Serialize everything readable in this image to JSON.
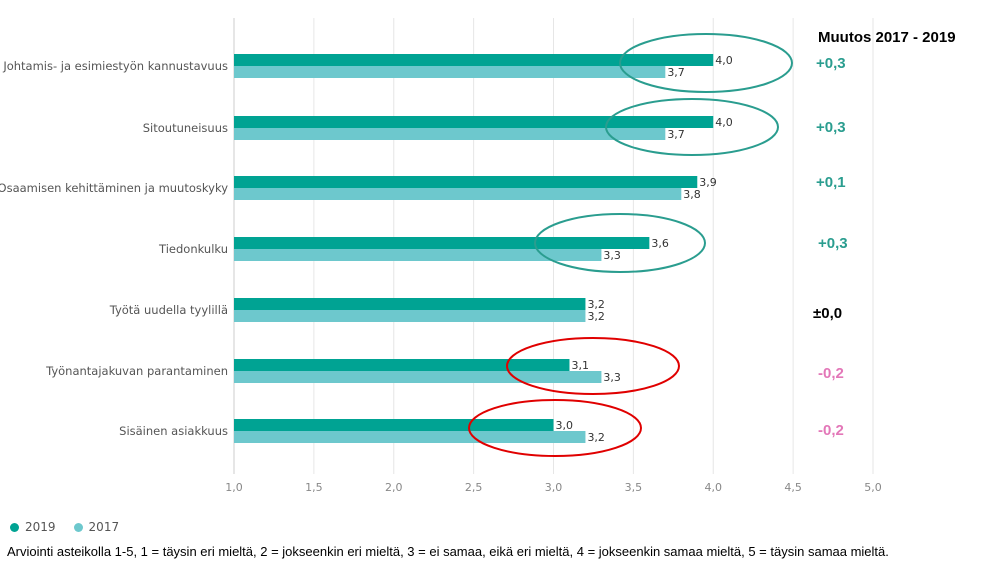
{
  "chart_data": {
    "type": "bar",
    "orientation": "horizontal",
    "categories": [
      "Johtamis- ja esimiestyön kannustavuus",
      "Sitoutuneisuus",
      "Osaamisen kehittäminen ja muutoskyky",
      "Tiedonkulku",
      "Työtä uudella tyylillä",
      "Työnantajakuvan parantaminen",
      "Sisäinen asiakkuus"
    ],
    "series": [
      {
        "name": "2019",
        "color": "#00a393",
        "values": [
          4.0,
          4.0,
          3.9,
          3.6,
          3.2,
          3.1,
          3.0
        ],
        "labels": [
          "4,0",
          "4,0",
          "3,9",
          "3,6",
          "3,2",
          "3,1",
          "3,0"
        ]
      },
      {
        "name": "2017",
        "color": "#6dc8cd",
        "values": [
          3.7,
          3.7,
          3.8,
          3.3,
          3.2,
          3.3,
          3.2
        ],
        "labels": [
          "3,7",
          "3,7",
          "3,8",
          "3,3",
          "3,2",
          "3,3",
          "3,2"
        ]
      }
    ],
    "xlim": [
      1.0,
      5.0
    ],
    "ticks": [
      1.0,
      1.5,
      2.0,
      2.5,
      3.0,
      3.5,
      4.0,
      4.5,
      5.0
    ],
    "tick_labels": [
      "1,0",
      "1,5",
      "2,0",
      "2,5",
      "3,0",
      "3,5",
      "4,0",
      "4,5",
      "5,0"
    ],
    "grid": true,
    "legend_placement": "bottom-left",
    "annotations": {
      "title": "Muutos 2017 - 2019",
      "changes": [
        {
          "text": "+0,3",
          "color": "#2a9d8f"
        },
        {
          "text": "+0,3",
          "color": "#2a9d8f"
        },
        {
          "text": "+0,1",
          "color": "#2a9d8f"
        },
        {
          "text": "+0,3",
          "color": "#2a9d8f"
        },
        {
          "text": "±0,0",
          "color": "#000000"
        },
        {
          "text": "-0,2",
          "color": "#e377b8"
        },
        {
          "text": "-0,2",
          "color": "#e377b8"
        }
      ],
      "highlights": [
        {
          "category_index": 0,
          "color": "#2a9d8f"
        },
        {
          "category_index": 1,
          "color": "#2a9d8f"
        },
        {
          "category_index": 3,
          "color": "#2a9d8f"
        },
        {
          "category_index": 5,
          "color": "#e00000"
        },
        {
          "category_index": 6,
          "color": "#e00000"
        }
      ]
    }
  },
  "footnote": "Arviointi asteikolla 1-5, 1 = täysin eri mieltä, 2 = jokseenkin eri mieltä, 3 = ei samaa, eikä eri mieltä, 4 = jokseenkin samaa mieltä, 5 = täysin samaa mieltä."
}
